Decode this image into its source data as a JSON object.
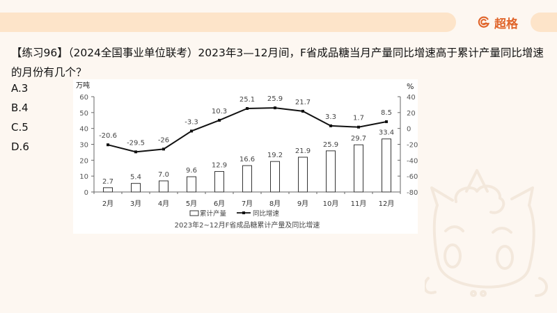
{
  "header": {
    "brand_name": "超格",
    "brand_icon": "g-logo-icon",
    "accent_color": "#e0652b"
  },
  "question": {
    "line1": "【练习96】（2024全国事业单位联考）2023年3—12月间，F省成品糖当月产量同比增速高于累计产量同比增速",
    "line2": "的月份有几个？"
  },
  "options": [
    {
      "label": "A.3"
    },
    {
      "label": "B.4"
    },
    {
      "label": "C.5"
    },
    {
      "label": "D.6"
    }
  ],
  "chart_data": {
    "type": "bar+line",
    "title": "2023年2~12月F省成品糖累计产量及同比增速",
    "categories": [
      "2月",
      "3月",
      "4月",
      "5月",
      "6月",
      "7月",
      "8月",
      "9月",
      "10月",
      "11月",
      "12月"
    ],
    "series": [
      {
        "name": "累计产量",
        "type": "bar",
        "axis": "left",
        "values": [
          2.7,
          5.4,
          7.0,
          9.6,
          12.9,
          16.6,
          19.2,
          21.9,
          25.9,
          29.7,
          33.4
        ],
        "labels": [
          "2.7",
          "5.4",
          "7.0",
          "9.6",
          "12.9",
          "16.6",
          "19.2",
          "21.9",
          "25.9",
          "29.7",
          "33.4"
        ]
      },
      {
        "name": "同比增速",
        "type": "line",
        "axis": "right",
        "values": [
          -20.6,
          -29.5,
          -26,
          -3.3,
          10.3,
          25.1,
          25.9,
          21.7,
          3.3,
          1.7,
          8.5
        ],
        "labels": [
          "-20.6",
          "-29.5",
          "-26",
          "-3.3",
          "10.3",
          "25.1",
          "25.9",
          "21.7",
          "3.3",
          "1.7",
          "8.5"
        ]
      }
    ],
    "left_axis": {
      "unit": "万吨",
      "ylim": [
        0,
        60
      ],
      "ticks": [
        "60",
        "50",
        "40",
        "30",
        "20",
        "10",
        "0"
      ]
    },
    "right_axis": {
      "unit": "%",
      "ylim": [
        -80,
        40
      ],
      "ticks": [
        "40",
        "20",
        "0",
        "-20",
        "-40",
        "-60",
        "-80"
      ]
    },
    "legend": [
      "累计产量",
      "同比增速"
    ],
    "legend_position": "bottom",
    "grid": false
  }
}
